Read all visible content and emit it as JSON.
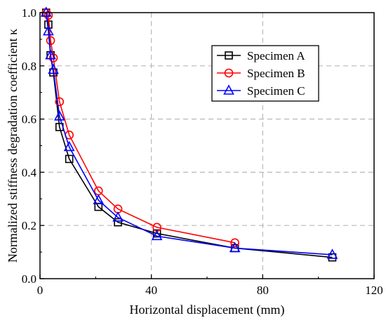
{
  "chart_data": {
    "type": "line",
    "xlabel": "Horizontal displacement (mm)",
    "ylabel": "Normalized stiffness degradation  coefficient κ",
    "xlim": [
      0,
      120
    ],
    "ylim": [
      0,
      1.0
    ],
    "xticks": [
      "0",
      "40",
      "80",
      "120"
    ],
    "yticks": [
      "0.0",
      "0.2",
      "0.4",
      "0.6",
      "0.8",
      "1.0"
    ],
    "grid": true,
    "legend_position": "top-right",
    "series": [
      {
        "name": "Specimen A",
        "color": "#000000",
        "marker": "square",
        "x": [
          2.2,
          3.0,
          3.8,
          4.8,
          7.0,
          10.5,
          21.0,
          28.0,
          42.0,
          70.0,
          105.0
        ],
        "y": [
          1.0,
          0.955,
          0.84,
          0.775,
          0.57,
          0.45,
          0.27,
          0.212,
          0.17,
          0.115,
          0.08
        ]
      },
      {
        "name": "Specimen B",
        "color": "#ff0000",
        "marker": "circle",
        "x": [
          2.2,
          3.0,
          3.8,
          4.8,
          7.0,
          10.5,
          21.0,
          28.0,
          42.0,
          70.0
        ],
        "y": [
          1.0,
          0.99,
          0.895,
          0.83,
          0.665,
          0.54,
          0.33,
          0.262,
          0.193,
          0.135
        ]
      },
      {
        "name": "Specimen C",
        "color": "#0000ff",
        "marker": "triangle",
        "x": [
          2.2,
          3.0,
          3.8,
          4.8,
          7.0,
          10.5,
          21.0,
          28.0,
          42.0,
          70.0,
          105.0
        ],
        "y": [
          1.0,
          0.93,
          0.84,
          0.785,
          0.61,
          0.495,
          0.295,
          0.23,
          0.16,
          0.115,
          0.09
        ]
      }
    ]
  }
}
